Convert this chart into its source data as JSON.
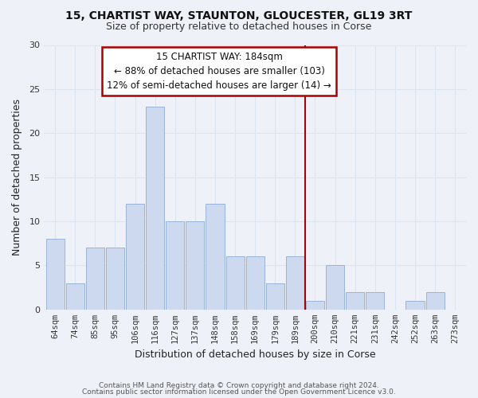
{
  "title": "15, CHARTIST WAY, STAUNTON, GLOUCESTER, GL19 3RT",
  "subtitle": "Size of property relative to detached houses in Corse",
  "xlabel": "Distribution of detached houses by size in Corse",
  "ylabel": "Number of detached properties",
  "bar_labels": [
    "64sqm",
    "74sqm",
    "85sqm",
    "95sqm",
    "106sqm",
    "116sqm",
    "127sqm",
    "137sqm",
    "148sqm",
    "158sqm",
    "169sqm",
    "179sqm",
    "189sqm",
    "200sqm",
    "210sqm",
    "221sqm",
    "231sqm",
    "242sqm",
    "252sqm",
    "263sqm",
    "273sqm"
  ],
  "bar_values": [
    8,
    3,
    7,
    7,
    12,
    23,
    10,
    10,
    12,
    6,
    6,
    3,
    6,
    1,
    5,
    2,
    2,
    0,
    1,
    2,
    0
  ],
  "bar_color": "#cdd9ee",
  "bar_edge_color": "#9ab3d5",
  "grid_color": "#dde6f0",
  "vline_x": 12.5,
  "vline_color": "#aa0000",
  "annotation_title": "15 CHARTIST WAY: 184sqm",
  "annotation_line1": "← 88% of detached houses are smaller (103)",
  "annotation_line2": "12% of semi-detached houses are larger (14) →",
  "annotation_box_facecolor": "#ffffff",
  "annotation_box_edgecolor": "#aa0000",
  "ylim": [
    0,
    30
  ],
  "yticks": [
    0,
    5,
    10,
    15,
    20,
    25,
    30
  ],
  "footnote1": "Contains HM Land Registry data © Crown copyright and database right 2024.",
  "footnote2": "Contains public sector information licensed under the Open Government Licence v3.0.",
  "background_color": "#eef2f8",
  "title_fontsize": 10,
  "subtitle_fontsize": 9,
  "axis_label_fontsize": 9,
  "tick_fontsize": 7.5,
  "annotation_fontsize": 8.5,
  "footnote_fontsize": 6.5
}
